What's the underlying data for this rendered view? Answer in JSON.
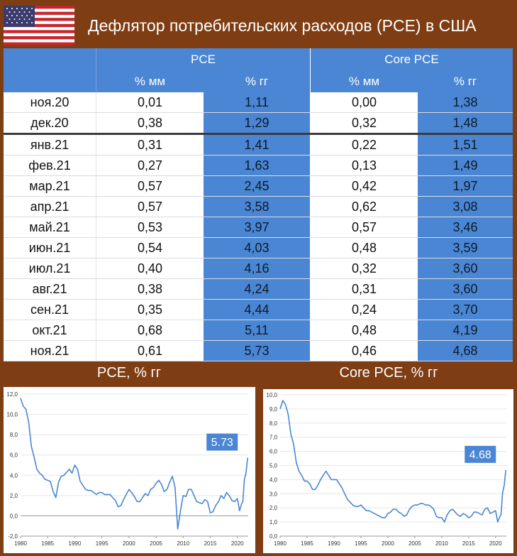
{
  "header": {
    "title": "Дефлятор потребительских расходов (PCE) в США"
  },
  "table": {
    "group_headers": [
      "PCE",
      "Core PCE"
    ],
    "sub_headers": [
      "% мм",
      "% гг",
      "% мм",
      "% гг"
    ],
    "rows": [
      [
        "ноя.20",
        "0,01",
        "1,11",
        "0,00",
        "1,38"
      ],
      [
        "дек.20",
        "0,38",
        "1,29",
        "0,32",
        "1,48"
      ],
      [
        "янв.21",
        "0,31",
        "1,41",
        "0,22",
        "1,51"
      ],
      [
        "фев.21",
        "0,27",
        "1,63",
        "0,13",
        "1,49"
      ],
      [
        "мар.21",
        "0,57",
        "2,45",
        "0,42",
        "1,97"
      ],
      [
        "апр.21",
        "0,57",
        "3,58",
        "0,62",
        "3,08"
      ],
      [
        "май.21",
        "0,53",
        "3,97",
        "0,57",
        "3,46"
      ],
      [
        "июн.21",
        "0,54",
        "4,03",
        "0,48",
        "3,59"
      ],
      [
        "июл.21",
        "0,40",
        "4,16",
        "0,32",
        "3,60"
      ],
      [
        "авг.21",
        "0,38",
        "4,24",
        "0,31",
        "3,60"
      ],
      [
        "сен.21",
        "0,35",
        "4,44",
        "0,24",
        "3,70"
      ],
      [
        "окт.21",
        "0,68",
        "5,11",
        "0,48",
        "4,19"
      ],
      [
        "ноя.21",
        "0,61",
        "5,73",
        "0,46",
        "4,68"
      ]
    ]
  },
  "chart_data": [
    {
      "type": "line",
      "title": "PCE, % гг",
      "x_ticks": [
        "1980",
        "1985",
        "1990",
        "1995",
        "2000",
        "2005",
        "2010",
        "2015",
        "2020"
      ],
      "y_ticks": [
        "-2,0",
        "0,0",
        "2,0",
        "4,0",
        "6,0",
        "8,0",
        "10,0",
        "12,0"
      ],
      "ylim": [
        -2,
        12
      ],
      "xlim": [
        1980,
        2022
      ],
      "callout": "5.73",
      "color": "#4a86d3",
      "x": [
        1980,
        1980.5,
        1981,
        1981.5,
        1982,
        1982.5,
        1983,
        1983.5,
        1984,
        1984.5,
        1985,
        1985.5,
        1986,
        1986.5,
        1987,
        1987.5,
        1988,
        1988.5,
        1989,
        1989.5,
        1990,
        1990.5,
        1991,
        1991.5,
        1992,
        1992.5,
        1993,
        1993.5,
        1994,
        1994.5,
        1995,
        1995.5,
        1996,
        1996.5,
        1997,
        1997.5,
        1998,
        1998.5,
        1999,
        1999.5,
        2000,
        2000.5,
        2001,
        2001.5,
        2002,
        2002.5,
        2003,
        2003.5,
        2004,
        2004.5,
        2005,
        2005.5,
        2006,
        2006.5,
        2007,
        2007.5,
        2008,
        2008.5,
        2009,
        2009.5,
        2010,
        2010.5,
        2011,
        2011.5,
        2012,
        2012.5,
        2013,
        2013.5,
        2014,
        2014.5,
        2015,
        2015.5,
        2016,
        2016.5,
        2017,
        2017.5,
        2018,
        2018.5,
        2019,
        2019.5,
        2020,
        2020.4,
        2020.8,
        2021,
        2021.3,
        2021.6,
        2021.9
      ],
      "values": [
        11.6,
        10.8,
        10.5,
        9.2,
        6.8,
        5.8,
        4.6,
        4.2,
        4.0,
        3.6,
        3.5,
        3.4,
        2.4,
        1.8,
        3.3,
        3.9,
        4.0,
        4.3,
        4.6,
        4.2,
        5.0,
        4.6,
        3.4,
        3.0,
        2.6,
        2.5,
        2.5,
        2.3,
        2.1,
        2.3,
        2.3,
        2.1,
        2.1,
        2.1,
        1.8,
        1.5,
        0.9,
        1.0,
        1.6,
        2.1,
        2.6,
        2.3,
        1.9,
        1.4,
        1.4,
        1.8,
        2.2,
        2.0,
        2.6,
        2.8,
        3.2,
        3.5,
        3.1,
        2.4,
        2.6,
        3.3,
        3.9,
        2.8,
        -1.3,
        0.5,
        2.0,
        1.9,
        2.6,
        2.6,
        2.0,
        1.4,
        1.3,
        1.2,
        1.6,
        1.4,
        0.3,
        0.4,
        1.0,
        1.4,
        2.0,
        1.7,
        2.3,
        2.0,
        1.5,
        1.4,
        1.7,
        0.5,
        1.2,
        1.4,
        3.58,
        4.24,
        5.73
      ]
    },
    {
      "type": "line",
      "title": "Core PCE, % гг",
      "x_ticks": [
        "1980",
        "1985",
        "1990",
        "1995",
        "2000",
        "2005",
        "2010",
        "2015",
        "2020"
      ],
      "y_ticks": [
        "0,0",
        "1,0",
        "2,0",
        "3,0",
        "4,0",
        "5,0",
        "6,0",
        "7,0",
        "8,0",
        "9,0",
        "10,0"
      ],
      "ylim": [
        0,
        10
      ],
      "xlim": [
        1980,
        2022
      ],
      "callout": "4.68",
      "color": "#4a86d3",
      "x": [
        1980,
        1980.5,
        1981,
        1981.5,
        1982,
        1982.5,
        1983,
        1983.5,
        1984,
        1984.5,
        1985,
        1985.5,
        1986,
        1986.5,
        1987,
        1987.5,
        1988,
        1988.5,
        1989,
        1989.5,
        1990,
        1990.5,
        1991,
        1991.5,
        1992,
        1992.5,
        1993,
        1993.5,
        1994,
        1994.5,
        1995,
        1995.5,
        1996,
        1996.5,
        1997,
        1997.5,
        1998,
        1998.5,
        1999,
        1999.5,
        2000,
        2000.5,
        2001,
        2001.5,
        2002,
        2002.5,
        2003,
        2003.5,
        2004,
        2004.5,
        2005,
        2005.5,
        2006,
        2006.5,
        2007,
        2007.5,
        2008,
        2008.5,
        2009,
        2009.5,
        2010,
        2010.5,
        2011,
        2011.5,
        2012,
        2012.5,
        2013,
        2013.5,
        2014,
        2014.5,
        2015,
        2015.5,
        2016,
        2016.5,
        2017,
        2017.5,
        2018,
        2018.5,
        2019,
        2019.5,
        2020,
        2020.4,
        2020.8,
        2021,
        2021.3,
        2021.6,
        2021.9
      ],
      "values": [
        9.0,
        9.6,
        9.3,
        8.6,
        7.2,
        6.5,
        5.2,
        4.6,
        4.3,
        3.9,
        3.9,
        3.7,
        3.3,
        3.3,
        3.6,
        4.0,
        4.3,
        4.6,
        4.3,
        4.0,
        4.0,
        4.0,
        3.7,
        3.4,
        3.0,
        2.6,
        2.4,
        2.2,
        2.1,
        2.1,
        2.2,
        2.0,
        1.8,
        1.8,
        1.7,
        1.6,
        1.5,
        1.4,
        1.3,
        1.3,
        1.6,
        1.7,
        1.9,
        1.9,
        1.7,
        1.6,
        1.4,
        1.5,
        1.9,
        2.1,
        2.2,
        2.2,
        2.3,
        2.3,
        2.2,
        2.2,
        2.1,
        1.9,
        1.4,
        1.3,
        1.3,
        1.0,
        1.5,
        1.8,
        1.9,
        1.7,
        1.5,
        1.4,
        1.6,
        1.5,
        1.3,
        1.4,
        1.7,
        1.7,
        1.6,
        1.5,
        1.9,
        2.0,
        1.6,
        1.7,
        1.8,
        1.0,
        1.4,
        1.5,
        3.08,
        3.6,
        4.68
      ]
    }
  ]
}
